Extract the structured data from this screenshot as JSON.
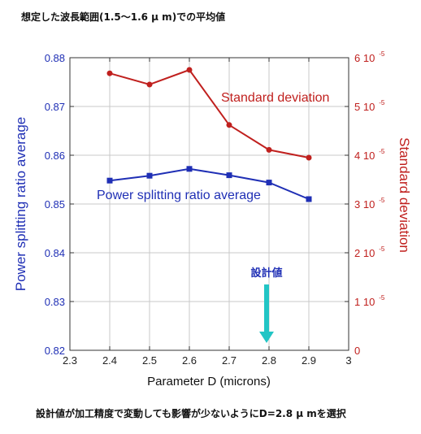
{
  "title": "想定した波長範囲(1.5〜1.6 μ m)での平均値",
  "caption": "設計値が加工精度で変動しても影響が少ないようにD=2.8 μ mを選択",
  "colors": {
    "left_series": "#1f2fb5",
    "right_series": "#c0201e",
    "arrow": "#22c5c5",
    "grid": "#c8c8c8"
  },
  "chart_data": {
    "type": "line",
    "title": "",
    "xlabel": "Parameter D (microns)",
    "ylabel": "Power splitting ratio average",
    "y2label": "Standard deviation",
    "x": [
      2.4,
      2.5,
      2.6,
      2.7,
      2.8,
      2.9
    ],
    "xlim": [
      2.3,
      3.0
    ],
    "xticks": [
      "2.3",
      "2.4",
      "2.5",
      "2.6",
      "2.7",
      "2.8",
      "2.9",
      "3"
    ],
    "ylim": [
      0.82,
      0.88
    ],
    "yticks": [
      "0.82",
      "0.83",
      "0.84",
      "0.85",
      "0.86",
      "0.87",
      "0.88"
    ],
    "y2lim": [
      0,
      6e-05
    ],
    "y2ticks": [
      "0",
      "1 10",
      "2 10",
      "3 10",
      "4 10",
      "5 10",
      "6 10"
    ],
    "y2tick_exponent": "-5",
    "grid": true,
    "series": [
      {
        "name": "Power splitting ratio average",
        "axis": "left",
        "marker": "square",
        "values": [
          0.8548,
          0.8558,
          0.8572,
          0.8559,
          0.8544,
          0.851
        ]
      },
      {
        "name": "Standard deviation",
        "axis": "right",
        "marker": "circle",
        "values": [
          5.68e-05,
          5.45e-05,
          5.75e-05,
          4.62e-05,
          4.11e-05,
          3.95e-05
        ]
      }
    ],
    "annotation": {
      "text": "設計値",
      "x": 2.8
    }
  }
}
